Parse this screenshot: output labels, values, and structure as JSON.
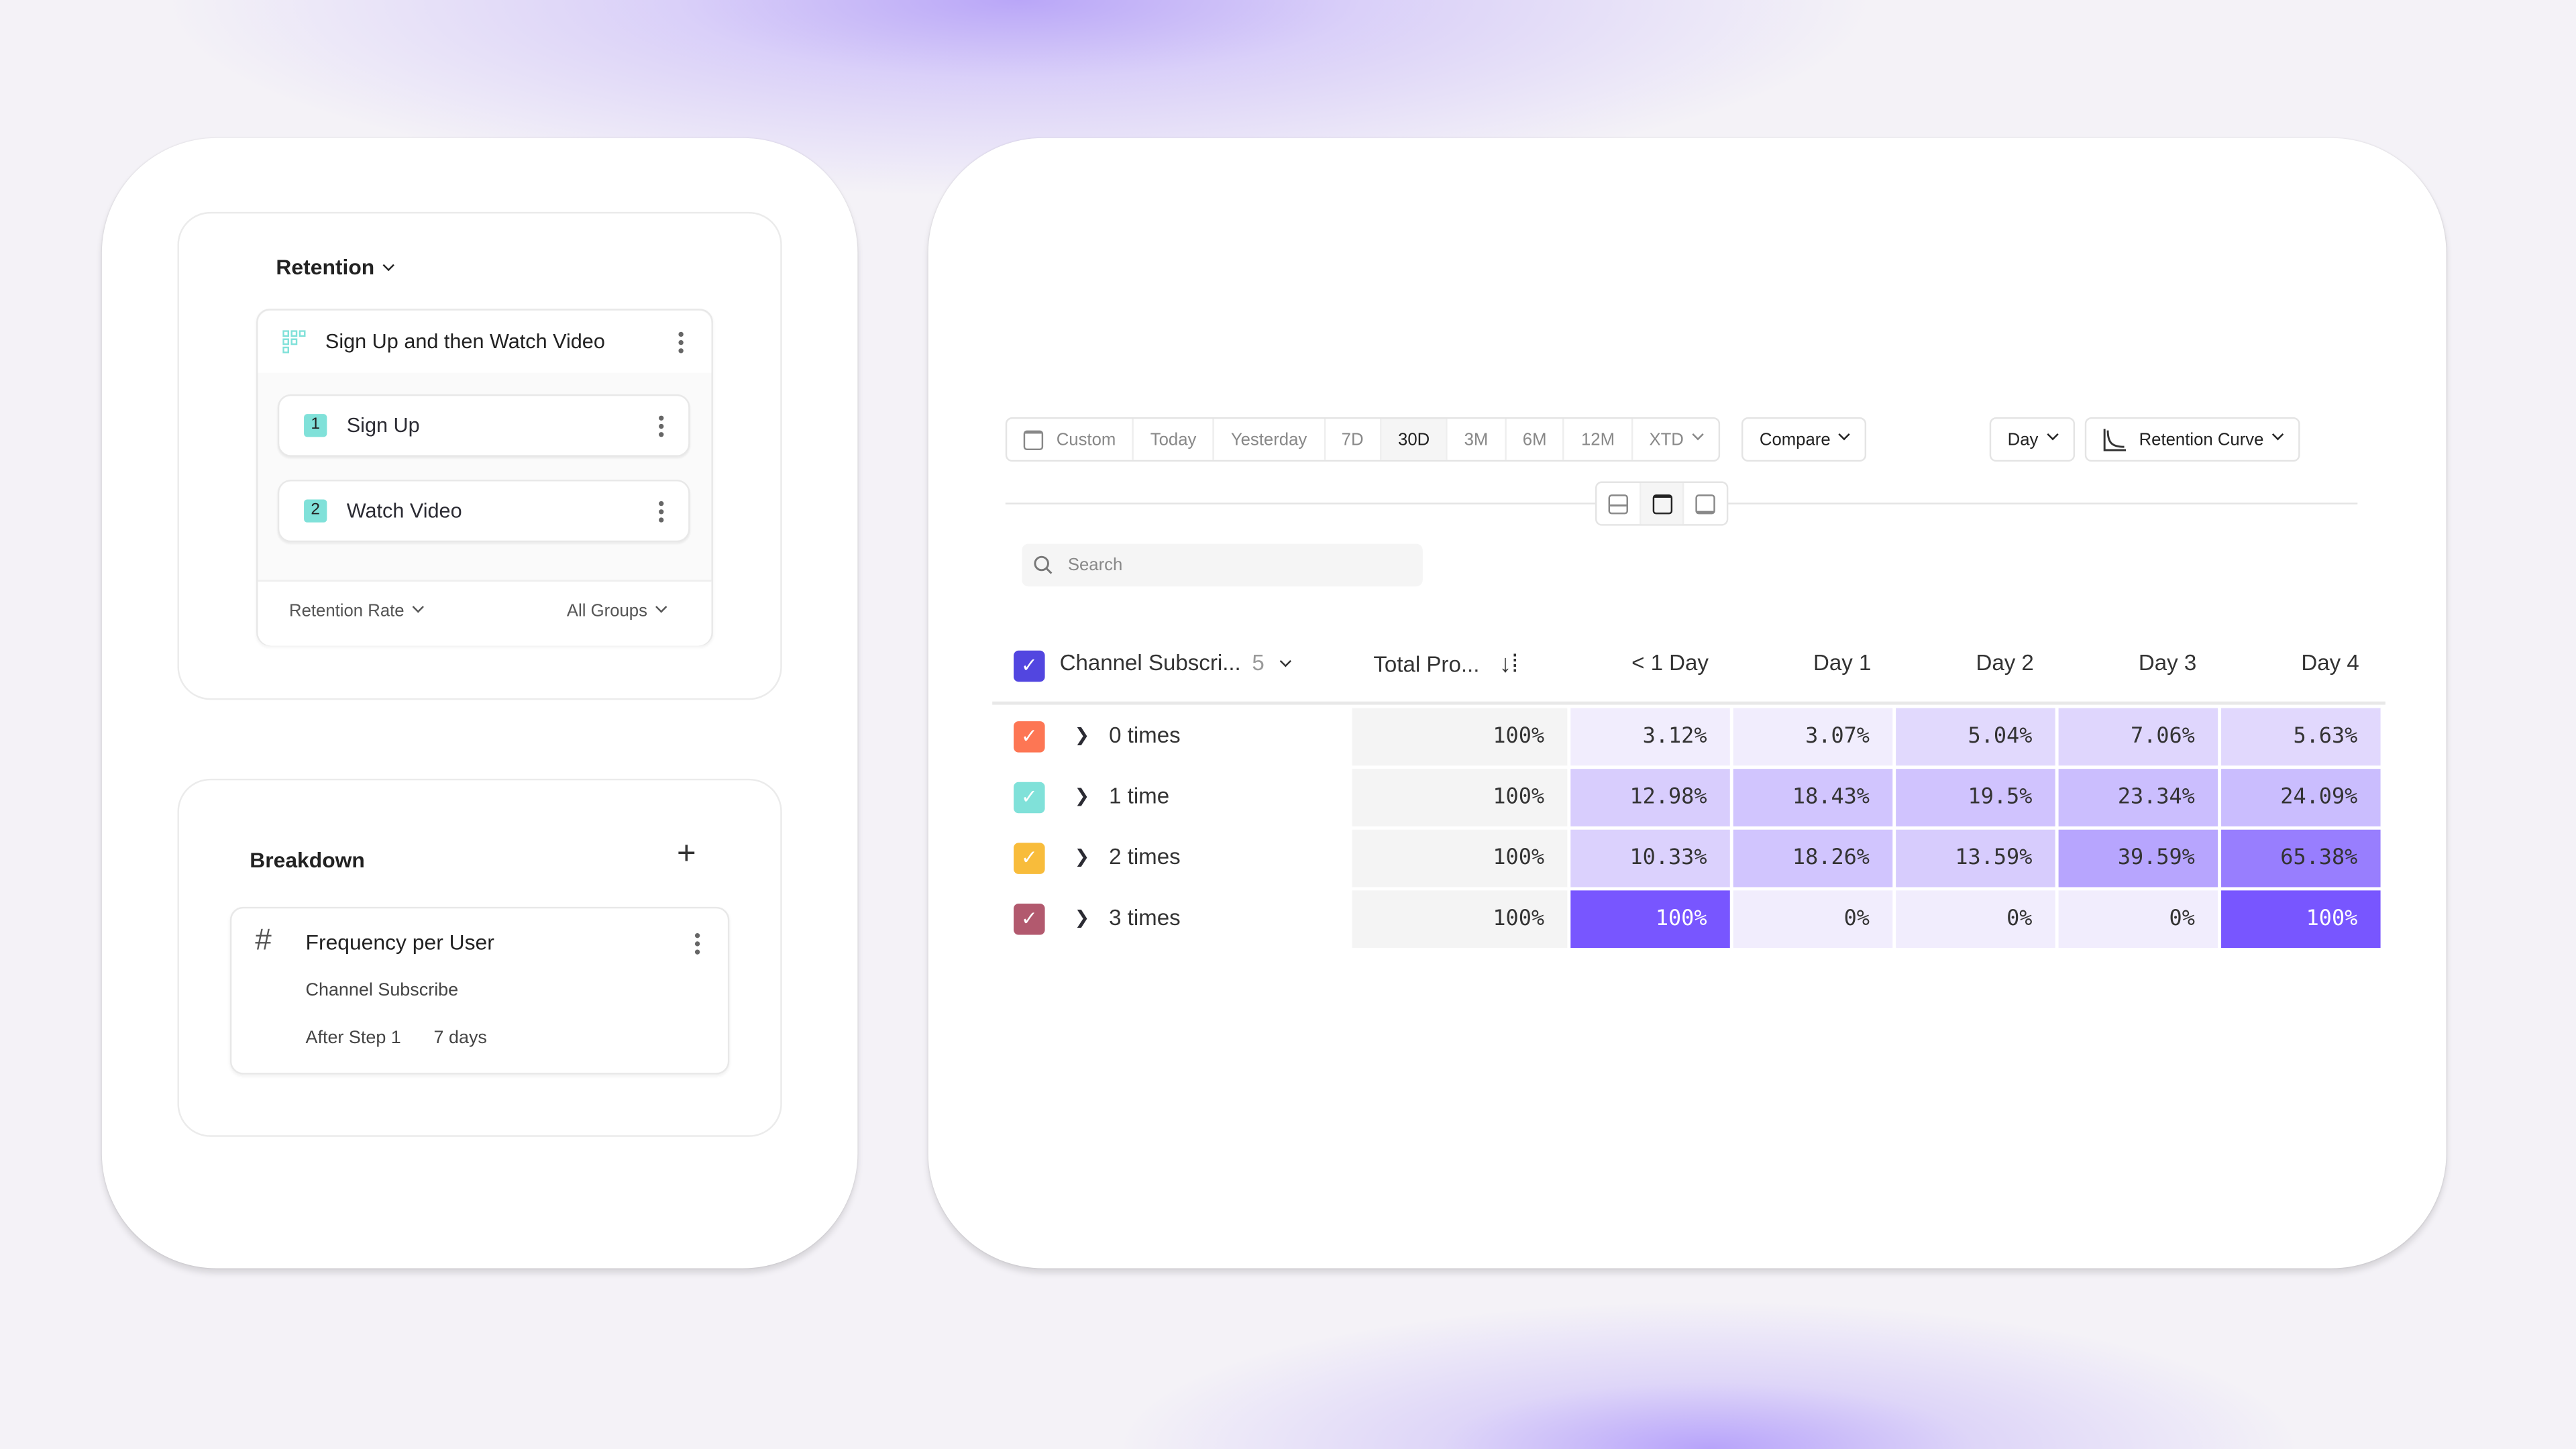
{
  "left": {
    "analysis_type": "Retention",
    "metric": {
      "title": "Sign Up and then Watch Video",
      "steps": [
        {
          "num": "1",
          "label": "Sign Up"
        },
        {
          "num": "2",
          "label": "Watch Video"
        }
      ],
      "rate_label": "Retention Rate",
      "groups_label": "All Groups"
    },
    "breakdown": {
      "title": "Breakdown",
      "item": {
        "title": "Frequency per User",
        "event": "Channel Subscribe",
        "after": "After Step 1",
        "window": "7 days"
      }
    }
  },
  "toolbar": {
    "date_options": [
      "Custom",
      "Today",
      "Yesterday",
      "7D",
      "30D",
      "3M",
      "6M",
      "12M",
      "XTD"
    ],
    "selected": "30D",
    "compare": "Compare",
    "interval": "Day",
    "chart_type": "Retention Curve"
  },
  "search": {
    "placeholder": "Search"
  },
  "table": {
    "group_header": "Channel Subscri...",
    "group_count": "5",
    "total_header": "Total Pro...",
    "columns": [
      "< 1 Day",
      "Day 1",
      "Day 2",
      "Day 3",
      "Day 4"
    ],
    "accent": "#7856ff",
    "rows": [
      {
        "label": "0 times",
        "color": "#fd7654",
        "total": "100%",
        "values": [
          "3.12%",
          "3.07%",
          "5.04%",
          "7.06%",
          "5.63%"
        ]
      },
      {
        "label": "1 time",
        "color": "#80e1d9",
        "total": "100%",
        "values": [
          "12.98%",
          "18.43%",
          "19.5%",
          "23.34%",
          "24.09%"
        ]
      },
      {
        "label": "2 times",
        "color": "#f8bc3b",
        "total": "100%",
        "values": [
          "10.33%",
          "18.26%",
          "13.59%",
          "39.59%",
          "65.38%"
        ]
      },
      {
        "label": "3 times",
        "color": "#b2596e",
        "total": "100%",
        "values": [
          "100%",
          "0%",
          "0%",
          "0%",
          "100%"
        ]
      }
    ]
  }
}
